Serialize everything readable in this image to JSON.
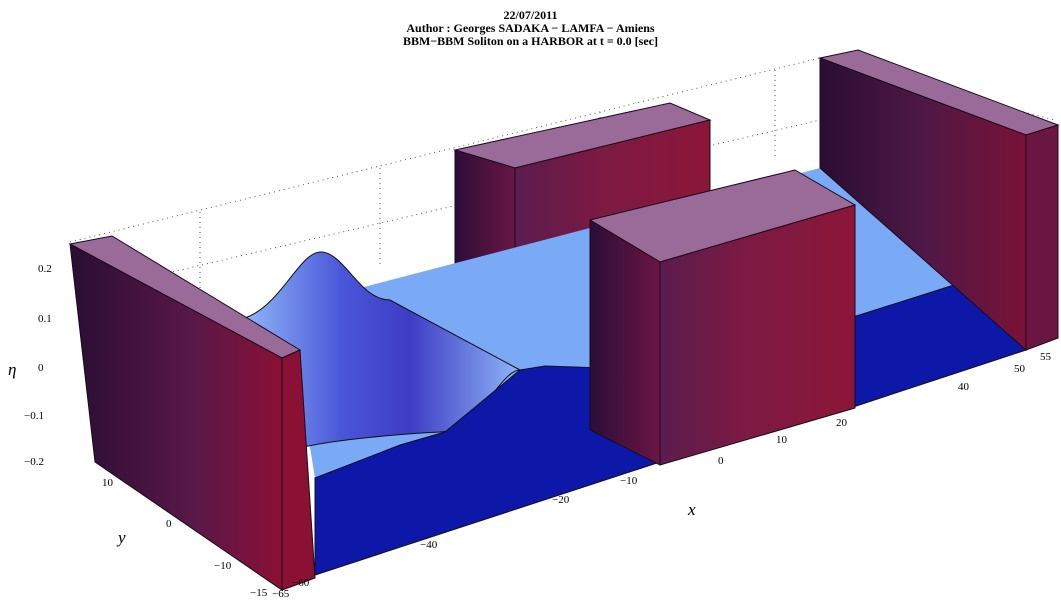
{
  "title_lines": [
    "22/07/2011",
    "Author : Georges SADAKA − LAMFA − Amiens",
    "BBM−BBM Soliton on a HARBOR at t = 0.0 [sec]"
  ],
  "chart_data": {
    "type": "surface3d",
    "title": "22/07/2011 / Author : Georges SADAKA − LAMFA − Amiens / BBM−BBM Soliton on a HARBOR at t = 0.0 [sec]",
    "xlabel": "x",
    "ylabel": "y",
    "zlabel": "η",
    "x_ticks": [
      "−65",
      "−60",
      "−40",
      "−20",
      "−10",
      "0",
      "10",
      "20",
      "40",
      "50",
      "55"
    ],
    "y_ticks": [
      "−15",
      "−10",
      "0",
      "10"
    ],
    "z_ticks": [
      "−0.2",
      "−0.1",
      "0",
      "0.1",
      "0.2"
    ],
    "xlim": [
      -65,
      55
    ],
    "ylim": [
      -15,
      15
    ],
    "zlim": [
      -0.2,
      0.25
    ],
    "soliton": {
      "center_x": -40,
      "amplitude": 0.25,
      "time": 0.0
    },
    "colors": {
      "water": "#7aaaf6",
      "water_side": "#1020a0",
      "wave": "#4a56d8",
      "wall_top": "#9a6a98",
      "wall_side": "#5a1848"
    }
  }
}
